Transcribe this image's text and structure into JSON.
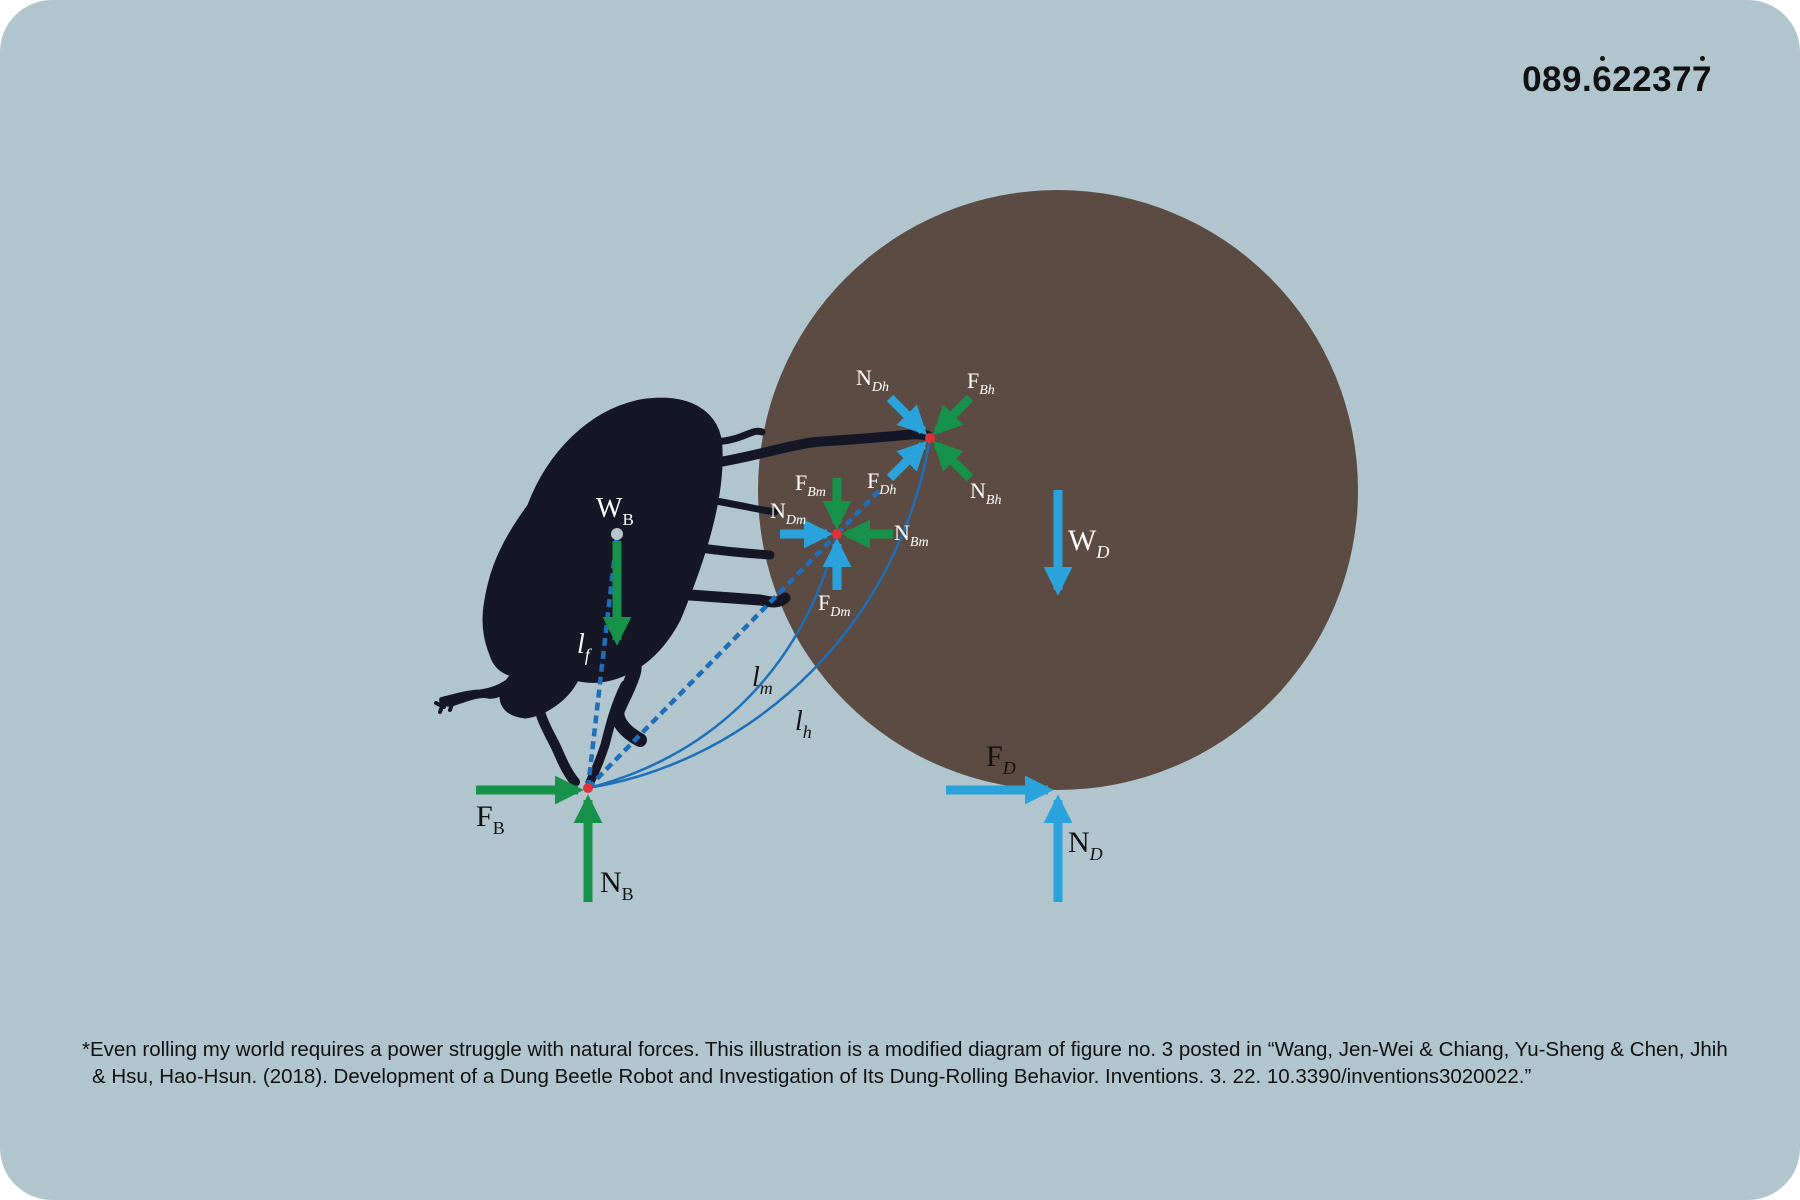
{
  "code": {
    "prefix": "089.",
    "dotted_start": "6",
    "middle": "2237",
    "dotted_end": "7"
  },
  "colors": {
    "background": "#b0c5cd",
    "dung_ball": "#5b4b43",
    "beetle": "#161726",
    "green_force": "#17924a",
    "blue_force": "#2aa3dd",
    "lever_line": "#1f6fb8",
    "contact_point": "#e0303a"
  },
  "labels": {
    "WB": {
      "main": "W",
      "sub": "B"
    },
    "FB": {
      "main": "F",
      "sub": "B"
    },
    "NB": {
      "main": "N",
      "sub": "B"
    },
    "lf": {
      "main": "l",
      "sub": "f"
    },
    "lm": {
      "main": "l",
      "sub": "m"
    },
    "lh": {
      "main": "l",
      "sub": "h"
    },
    "FD": {
      "main": "F",
      "sub": "D"
    },
    "ND": {
      "main": "N",
      "sub": "D"
    },
    "WD": {
      "main": "W",
      "sub": "D"
    },
    "NDh": {
      "main": "N",
      "sub": "Dh"
    },
    "FBh": {
      "main": "F",
      "sub": "Bh"
    },
    "NBh": {
      "main": "N",
      "sub": "Bh"
    },
    "FBm": {
      "main": "F",
      "sub": "Bm"
    },
    "FDh": {
      "main": "F",
      "sub": "Dh"
    },
    "NDm": {
      "main": "N",
      "sub": "Dm"
    },
    "NBm": {
      "main": "N",
      "sub": "Bm"
    },
    "FDm": {
      "main": "F",
      "sub": "Dm"
    }
  },
  "caption": "*Even rolling my world requires a power struggle with natural forces. This illustration is a modified diagram of figure no. 3 posted in “Wang, Jen-Wei & Chiang, Yu-Sheng & Chen, Jhih & Hsu, Hao-Hsun. (2018). Development of a Dung Beetle Robot and Investigation of Its Dung-Rolling Behavior. Inventions. 3. 22. 10.3390/inventions3020022.”"
}
